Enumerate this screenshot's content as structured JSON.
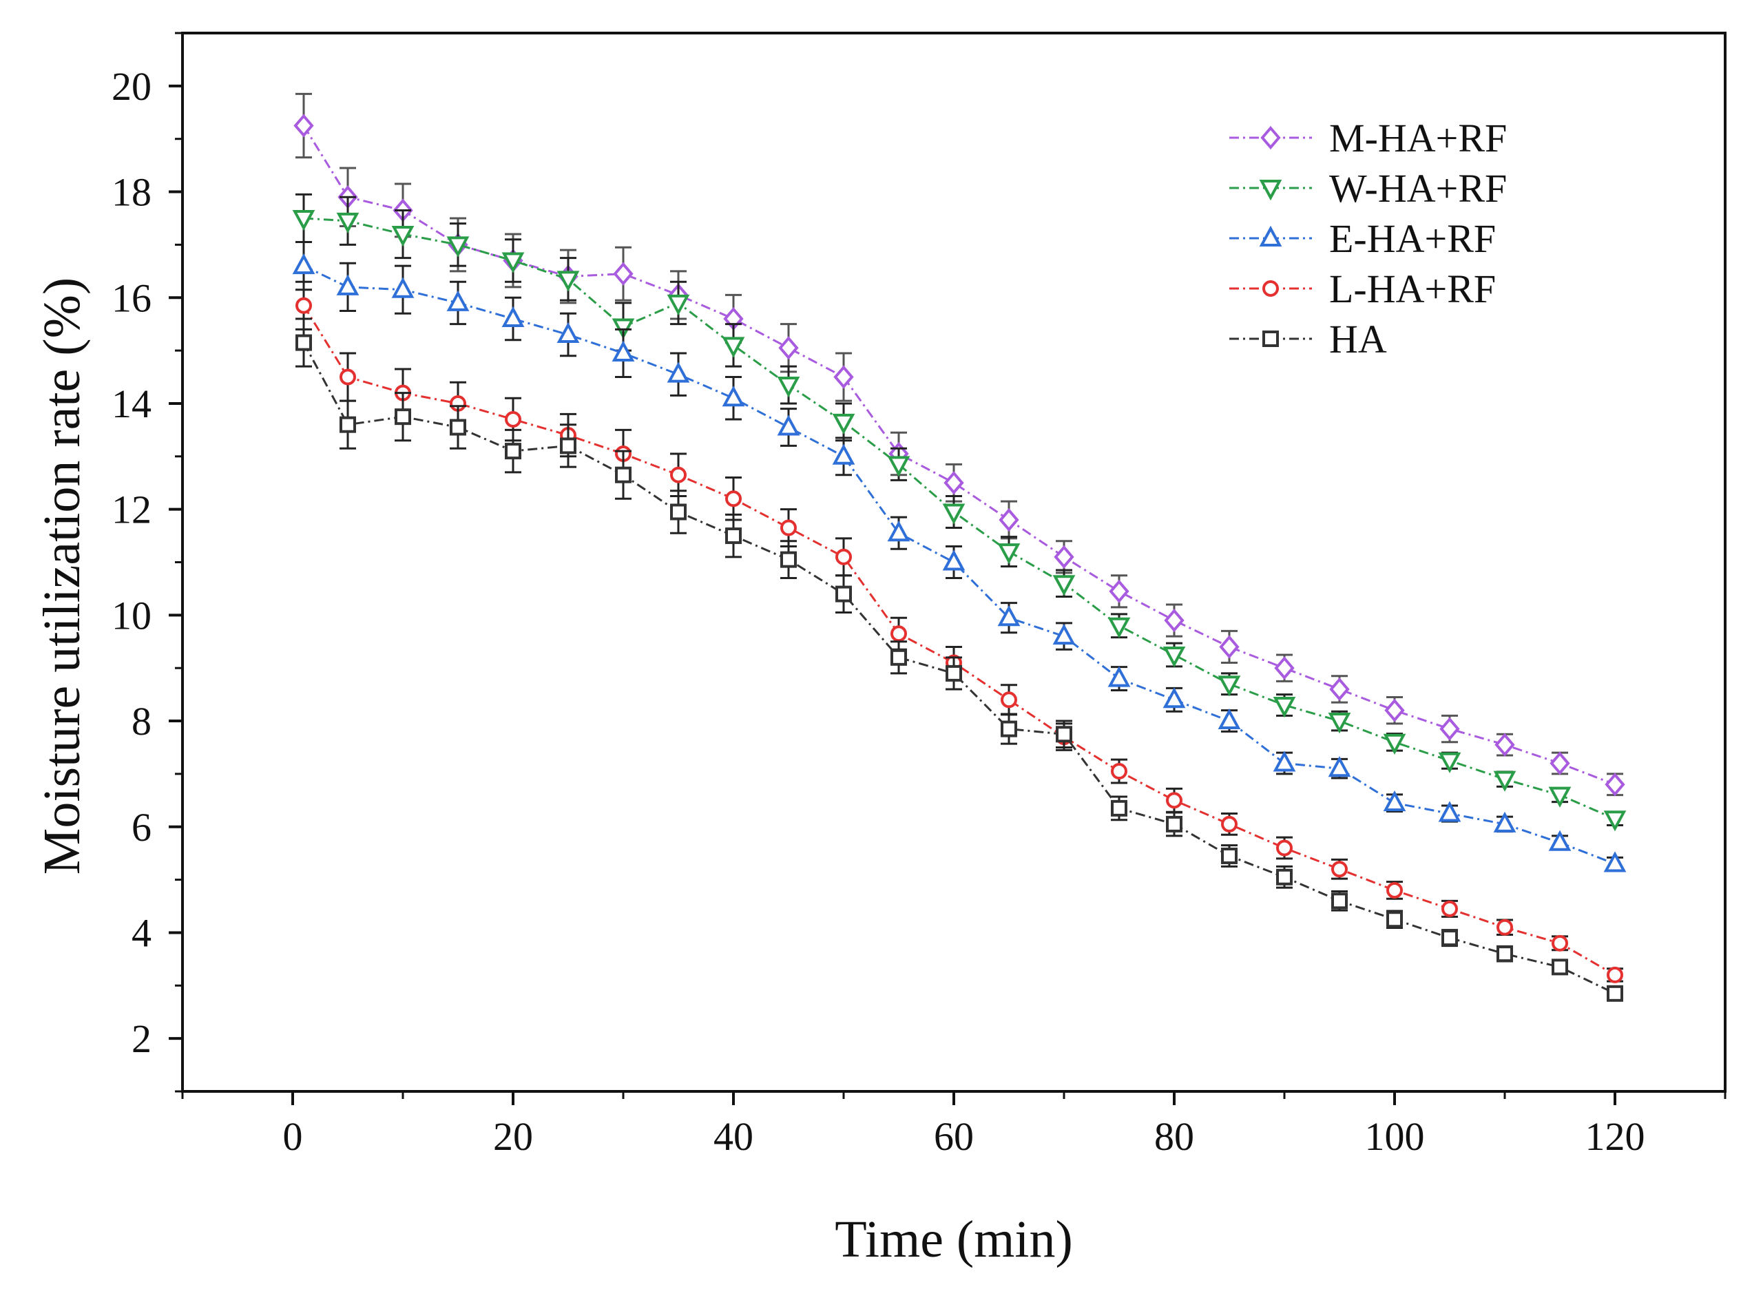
{
  "chart_data": {
    "type": "line",
    "title": "",
    "xlabel": "Time (min)",
    "ylabel": "Moisture utilization rate (%)",
    "xlim": [
      -10,
      130
    ],
    "ylim": [
      1,
      21
    ],
    "xticks": [
      0,
      20,
      40,
      60,
      80,
      100,
      120
    ],
    "yticks": [
      2,
      4,
      6,
      8,
      10,
      12,
      14,
      16,
      18,
      20
    ],
    "x": [
      1,
      5,
      10,
      15,
      20,
      25,
      30,
      35,
      40,
      45,
      50,
      55,
      60,
      65,
      70,
      75,
      80,
      85,
      90,
      95,
      100,
      105,
      110,
      115,
      120
    ],
    "legend_position": "top-right",
    "series": [
      {
        "name": "M-HA+RF",
        "color": "#a95be0",
        "marker": "diamond",
        "values": [
          19.25,
          17.9,
          17.65,
          17.0,
          16.7,
          16.4,
          16.45,
          16.05,
          15.6,
          15.05,
          14.5,
          13.05,
          12.5,
          11.8,
          11.1,
          10.45,
          9.9,
          9.4,
          9.0,
          8.6,
          8.2,
          7.85,
          7.55,
          7.2,
          6.8
        ],
        "errors": [
          0.6,
          0.55,
          0.5,
          0.5,
          0.5,
          0.5,
          0.5,
          0.45,
          0.45,
          0.45,
          0.45,
          0.4,
          0.35,
          0.35,
          0.3,
          0.3,
          0.3,
          0.3,
          0.25,
          0.25,
          0.25,
          0.25,
          0.2,
          0.2,
          0.2
        ]
      },
      {
        "name": "W-HA+RF",
        "color": "#2a9d48",
        "marker": "triangle-down",
        "values": [
          17.5,
          17.45,
          17.2,
          17.0,
          16.7,
          16.35,
          15.45,
          15.9,
          15.1,
          14.35,
          13.65,
          12.85,
          11.95,
          11.2,
          10.6,
          9.8,
          9.25,
          8.7,
          8.3,
          8.0,
          7.6,
          7.25,
          6.9,
          6.6,
          6.15
        ]
      },
      {
        "name": "E-HA+RF",
        "color": "#2f6fd8",
        "marker": "triangle-up",
        "values": [
          16.6,
          16.2,
          16.15,
          15.9,
          15.6,
          15.3,
          14.95,
          14.55,
          14.1,
          13.55,
          13.0,
          11.55,
          11.0,
          9.95,
          9.6,
          8.8,
          8.4,
          8.0,
          7.2,
          7.1,
          6.45,
          6.25,
          6.05,
          5.7,
          5.3
        ]
      },
      {
        "name": "L-HA+RF",
        "color": "#e53030",
        "marker": "circle",
        "values": [
          15.85,
          14.5,
          14.2,
          14.0,
          13.7,
          13.4,
          13.05,
          12.65,
          12.2,
          11.65,
          11.1,
          9.65,
          9.1,
          8.4,
          7.7,
          7.05,
          6.5,
          6.05,
          5.6,
          5.2,
          4.8,
          4.45,
          4.1,
          3.8,
          3.2
        ]
      },
      {
        "name": "HA",
        "color": "#333333",
        "marker": "square",
        "values": [
          15.15,
          13.6,
          13.75,
          13.55,
          13.1,
          13.2,
          12.65,
          11.95,
          11.5,
          11.05,
          10.4,
          9.2,
          8.9,
          7.85,
          7.75,
          6.35,
          6.05,
          5.45,
          5.05,
          4.6,
          4.25,
          3.9,
          3.6,
          3.35,
          2.85
        ]
      }
    ]
  }
}
